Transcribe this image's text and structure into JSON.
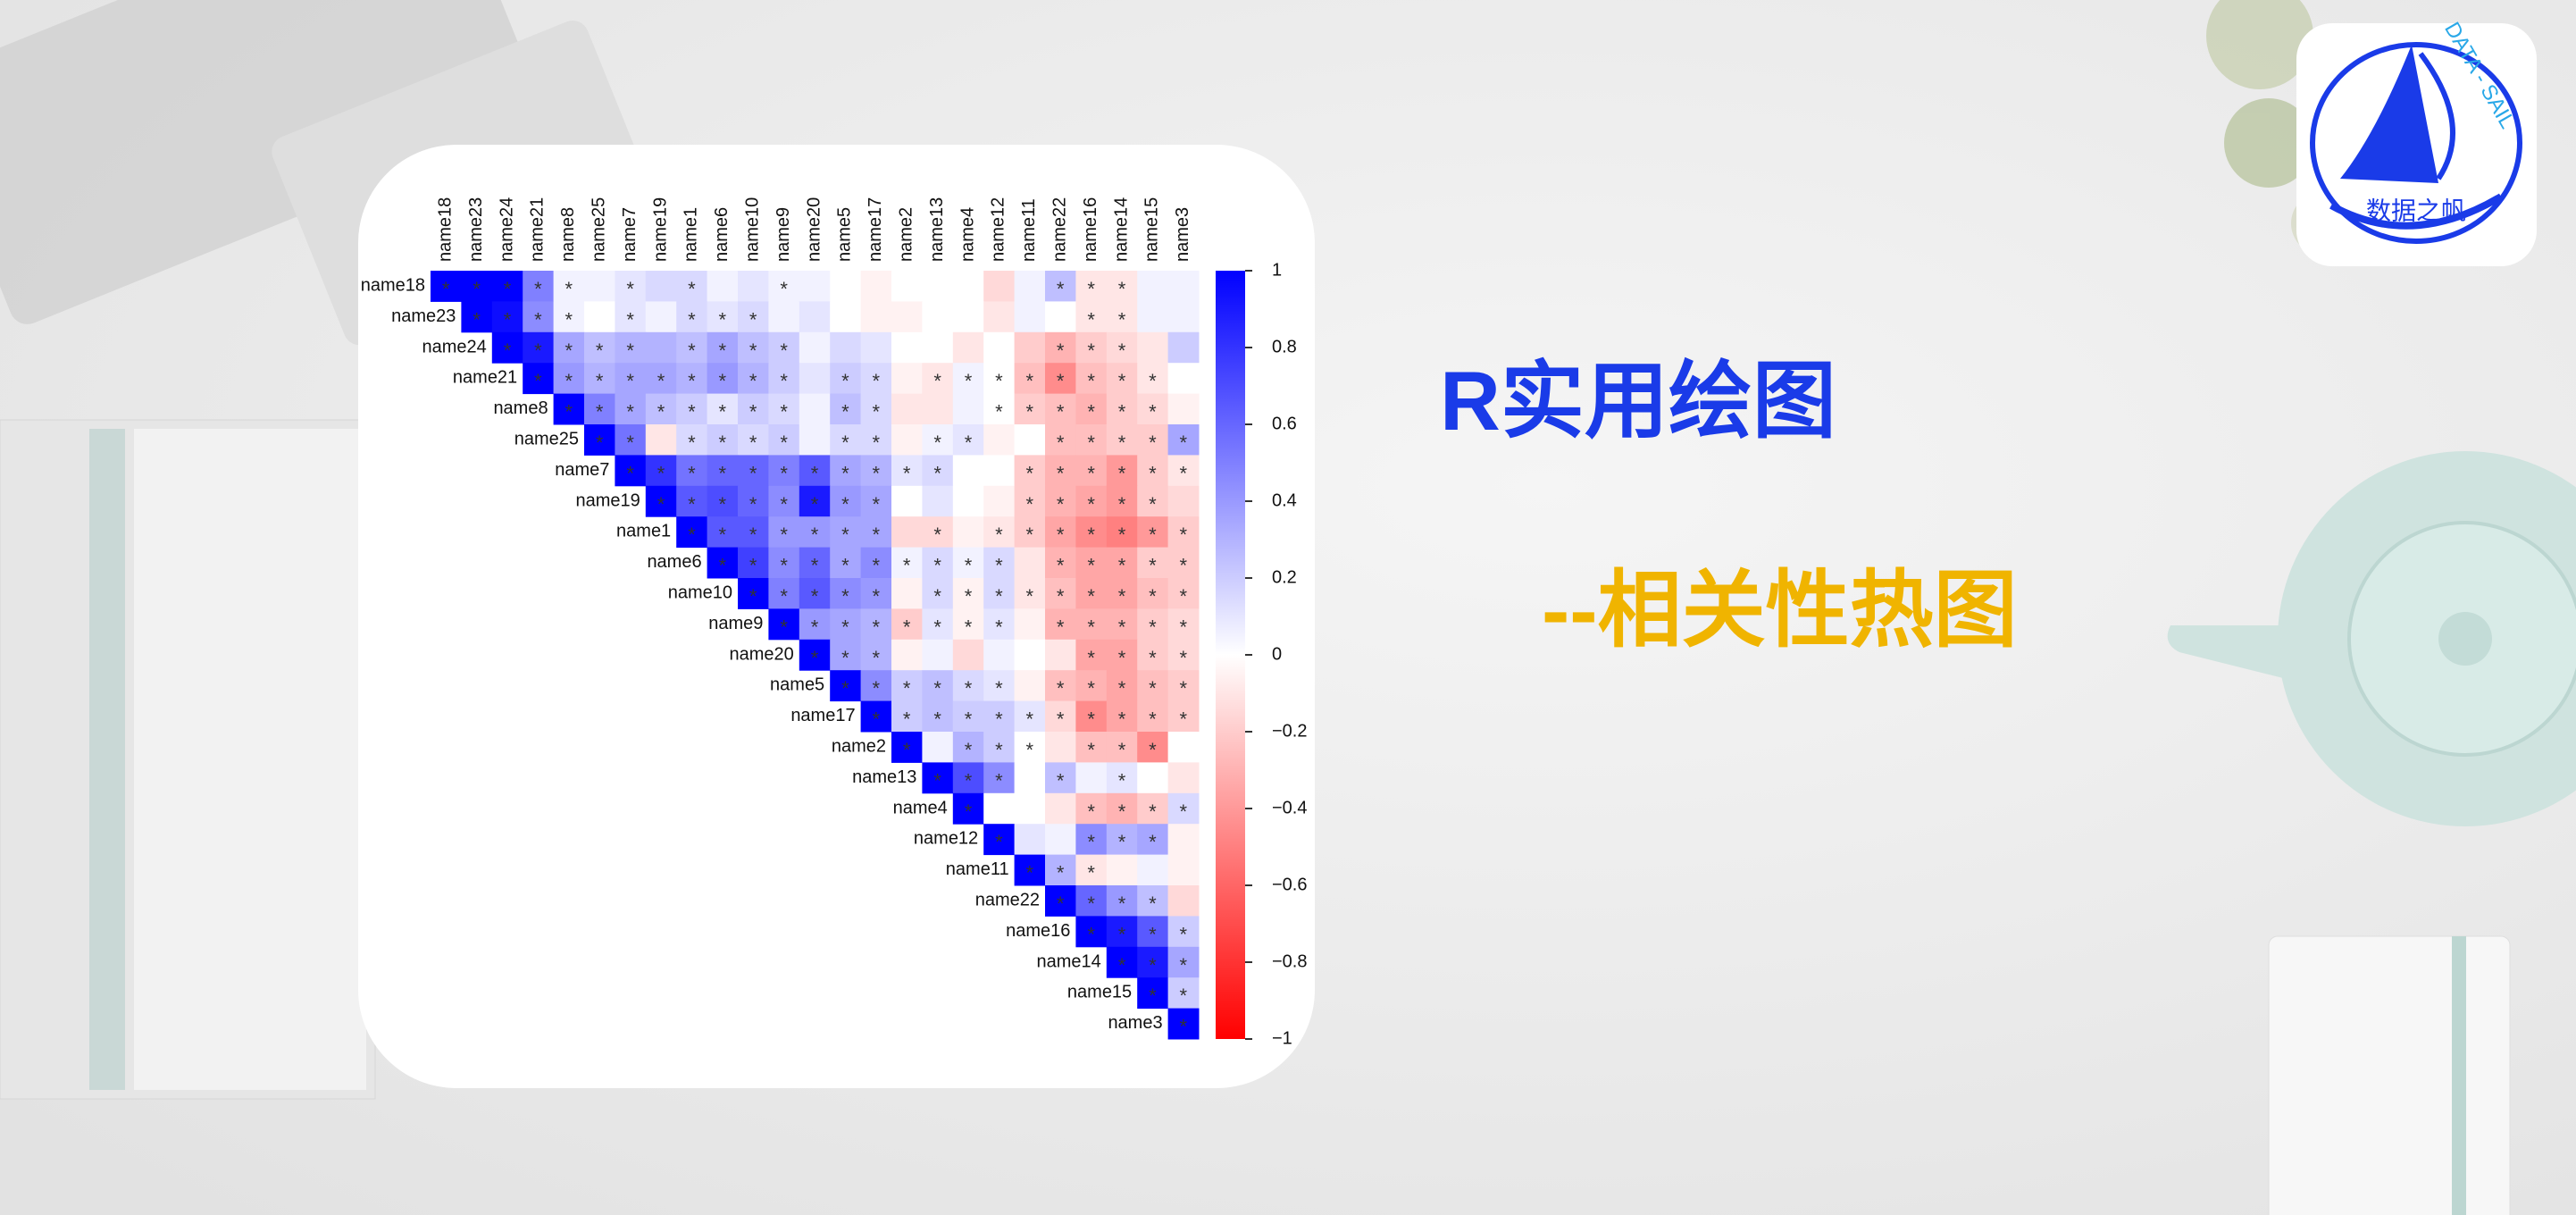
{
  "slide": {
    "title": "R实用绘图",
    "subtitle": "--相关性热图",
    "logo_text": "DATA - SAIL",
    "logo_name": "数据之帆"
  },
  "chart_data": {
    "type": "heatmap",
    "variables": [
      "name18",
      "name23",
      "name24",
      "name21",
      "name8",
      "name25",
      "name7",
      "name19",
      "name1",
      "name6",
      "name10",
      "name9",
      "name20",
      "name5",
      "name17",
      "name2",
      "name13",
      "name4",
      "name12",
      "name11",
      "name22",
      "name16",
      "name14",
      "name15",
      "name3"
    ],
    "values": [
      [
        1,
        1,
        1,
        0.5,
        0.05,
        0.05,
        0.1,
        0.15,
        0.15,
        0.05,
        0.1,
        0.05,
        0.05,
        0,
        -0.05,
        0,
        0,
        0,
        -0.15,
        0.05,
        0.25,
        -0.1,
        -0.1,
        0.05,
        0.05
      ],
      [
        1,
        0.95,
        0.45,
        0.05,
        0,
        0.1,
        0.05,
        0.15,
        0.1,
        0.15,
        0.05,
        0.1,
        0,
        -0.05,
        -0.05,
        0,
        0,
        -0.1,
        0.05,
        0,
        -0.1,
        -0.1,
        0.05,
        0.05
      ],
      [
        1,
        0.9,
        0.35,
        0.25,
        0.3,
        0.3,
        0.25,
        0.35,
        0.25,
        0.2,
        0.05,
        0.15,
        0.1,
        0,
        0,
        -0.1,
        0,
        -0.2,
        -0.3,
        -0.2,
        -0.15,
        -0.1,
        0.2
      ],
      [
        1,
        0.4,
        0.3,
        0.35,
        0.35,
        0.3,
        0.4,
        0.3,
        0.2,
        0.1,
        0.2,
        0.15,
        -0.05,
        -0.1,
        0.05,
        0,
        -0.25,
        -0.45,
        -0.25,
        -0.2,
        -0.1,
        0
      ],
      [
        1,
        0.5,
        0.35,
        0.25,
        0.2,
        0.1,
        0.2,
        0.15,
        0.05,
        0.25,
        0.15,
        -0.1,
        -0.1,
        0.05,
        0,
        -0.2,
        -0.25,
        -0.3,
        -0.2,
        -0.15,
        -0.05
      ],
      [
        1,
        0.55,
        -0.1,
        0.15,
        0.2,
        0.15,
        0.2,
        0.05,
        0.15,
        0.15,
        -0.05,
        0.05,
        0.1,
        -0.05,
        0,
        -0.25,
        -0.25,
        -0.2,
        -0.2,
        0.35
      ],
      [
        1,
        0.8,
        0.55,
        0.6,
        0.6,
        0.5,
        0.65,
        0.35,
        0.3,
        0.1,
        0.15,
        0,
        0,
        -0.2,
        -0.3,
        -0.3,
        -0.4,
        -0.2,
        -0.1
      ],
      [
        1,
        0.65,
        0.7,
        0.6,
        0.45,
        0.9,
        0.4,
        0.35,
        0,
        0.1,
        0,
        -0.05,
        -0.2,
        -0.3,
        -0.35,
        -0.4,
        -0.2,
        -0.15
      ],
      [
        1,
        0.65,
        0.65,
        0.4,
        0.4,
        0.35,
        0.35,
        -0.15,
        -0.15,
        -0.05,
        -0.1,
        -0.2,
        -0.35,
        -0.45,
        -0.5,
        -0.4,
        -0.2
      ],
      [
        1,
        0.75,
        0.45,
        0.6,
        0.35,
        0.45,
        0.05,
        0.15,
        0.05,
        0.15,
        -0.1,
        -0.3,
        -0.35,
        -0.35,
        -0.2,
        -0.2
      ],
      [
        1,
        0.5,
        0.65,
        0.45,
        0.4,
        -0.05,
        0.15,
        -0.05,
        0.15,
        -0.1,
        -0.25,
        -0.35,
        -0.35,
        -0.25,
        -0.2
      ],
      [
        1,
        0.4,
        0.35,
        0.3,
        -0.2,
        0.1,
        -0.05,
        0.1,
        -0.05,
        -0.3,
        -0.3,
        -0.3,
        -0.2,
        -0.15
      ],
      [
        1,
        0.35,
        0.3,
        -0.05,
        0.05,
        -0.15,
        0.05,
        0,
        -0.1,
        -0.35,
        -0.35,
        -0.2,
        -0.15
      ],
      [
        1,
        0.45,
        0.2,
        0.25,
        0.15,
        0.1,
        -0.05,
        -0.25,
        -0.3,
        -0.35,
        -0.25,
        -0.2
      ],
      [
        1,
        0.2,
        0.25,
        0.2,
        0.2,
        0.1,
        -0.15,
        -0.45,
        -0.35,
        -0.25,
        -0.2
      ],
      [
        1,
        0.05,
        0.3,
        0.2,
        0,
        -0.1,
        -0.25,
        -0.25,
        -0.45,
        0
      ],
      [
        1,
        0.7,
        0.45,
        0,
        0.25,
        0.05,
        0.1,
        0,
        -0.1
      ],
      [
        1,
        0,
        0,
        -0.1,
        -0.25,
        -0.3,
        -0.2,
        0.15
      ],
      [
        1,
        0.1,
        0.05,
        0.45,
        0.3,
        0.35,
        -0.05
      ],
      [
        1,
        0.3,
        -0.1,
        -0.05,
        0.05,
        -0.05
      ],
      [
        1,
        0.6,
        0.4,
        0.25,
        -0.15
      ],
      [
        1,
        0.9,
        0.65,
        0.2
      ],
      [
        1,
        0.9,
        0.35
      ],
      [
        1,
        0.2
      ],
      [
        1
      ]
    ],
    "stars": [
      [
        "*",
        "*",
        "*",
        "*",
        "*",
        null,
        "*",
        null,
        "*",
        null,
        null,
        "*",
        null,
        null,
        null,
        null,
        null,
        null,
        null,
        null,
        "*",
        "*",
        "*",
        null,
        null
      ],
      [
        "*",
        "*",
        "*",
        "*",
        null,
        "*",
        null,
        "*",
        "*",
        "*",
        null,
        null,
        null,
        null,
        null,
        null,
        null,
        null,
        null,
        null,
        "*",
        "*",
        null,
        null
      ],
      [
        "*",
        "*",
        "*",
        "*",
        "*",
        null,
        "*",
        "*",
        "*",
        "*",
        null,
        null,
        null,
        null,
        null,
        null,
        null,
        null,
        "*",
        "*",
        "*",
        null,
        null
      ],
      [
        "*",
        "*",
        "*",
        "*",
        "*",
        "*",
        "*",
        "*",
        "*",
        null,
        "*",
        "*",
        null,
        "*",
        "*",
        "*",
        "*",
        "*",
        "*",
        "*",
        "*",
        null
      ],
      [
        "*",
        "*",
        "*",
        "*",
        "*",
        "*",
        "*",
        "*",
        null,
        "*",
        "*",
        null,
        null,
        null,
        "*",
        "*",
        "*",
        "*",
        "*",
        "*",
        null
      ],
      [
        "*",
        "*",
        null,
        "*",
        "*",
        "*",
        "*",
        null,
        "*",
        "*",
        null,
        "*",
        "*",
        null,
        null,
        "*",
        "*",
        "*",
        "*",
        "*"
      ],
      [
        "*",
        "*",
        "*",
        "*",
        "*",
        "*",
        "*",
        "*",
        "*",
        "*",
        "*",
        null,
        null,
        "*",
        "*",
        "*",
        "*",
        "*",
        "*"
      ],
      [
        "*",
        "*",
        "*",
        "*",
        "*",
        "*",
        "*",
        "*",
        null,
        null,
        null,
        null,
        "*",
        "*",
        "*",
        "*",
        "*",
        null
      ],
      [
        "*",
        "*",
        "*",
        "*",
        "*",
        "*",
        "*",
        null,
        "*",
        null,
        "*",
        "*",
        "*",
        "*",
        "*",
        "*",
        "*"
      ],
      [
        "*",
        "*",
        "*",
        "*",
        "*",
        "*",
        "*",
        "*",
        "*",
        "*",
        null,
        "*",
        "*",
        "*",
        "*",
        "*"
      ],
      [
        "*",
        "*",
        "*",
        "*",
        "*",
        null,
        "*",
        "*",
        "*",
        "*",
        "*",
        "*",
        "*",
        "*",
        "*"
      ],
      [
        "*",
        "*",
        "*",
        "*",
        "*",
        "*",
        "*",
        "*",
        null,
        "*",
        "*",
        "*",
        "*",
        "*"
      ],
      [
        "*",
        "*",
        "*",
        null,
        null,
        null,
        null,
        null,
        null,
        "*",
        "*",
        "*",
        "*"
      ],
      [
        "*",
        "*",
        "*",
        "*",
        "*",
        "*",
        null,
        "*",
        "*",
        "*",
        "*",
        "*"
      ],
      [
        "*",
        "*",
        "*",
        "*",
        "*",
        "*",
        "*",
        "*",
        "*",
        "*",
        "*"
      ],
      [
        "*",
        null,
        "*",
        "*",
        "*",
        null,
        "*",
        "*",
        "*",
        null
      ],
      [
        "*",
        "*",
        "*",
        null,
        "*",
        null,
        "*",
        null,
        null
      ],
      [
        "*",
        null,
        null,
        null,
        "*",
        "*",
        "*",
        "*"
      ],
      [
        "*",
        null,
        null,
        "*",
        "*",
        "*",
        null
      ],
      [
        "*",
        "*",
        "*",
        null,
        null,
        null
      ],
      [
        "*",
        "*",
        "*",
        "*",
        null
      ],
      [
        "*",
        "*",
        "*",
        "*"
      ],
      [
        "*",
        "*",
        "*"
      ],
      [
        "*",
        "*"
      ],
      [
        "*"
      ]
    ],
    "clim": [
      -1,
      1
    ],
    "colors": [
      "#ff0000",
      "#ffffff",
      "#0000ff"
    ],
    "cticks": [
      1,
      0.8,
      0.6,
      0.4,
      0.2,
      0,
      {
        "value": -0.2,
        "label": "−0.2"
      },
      {
        "value": -0.4,
        "label": "−0.4"
      },
      {
        "value": -0.6,
        "label": "−0.6"
      },
      {
        "value": -0.8,
        "label": "−0.8"
      },
      {
        "value": -1,
        "label": "−1"
      }
    ]
  }
}
